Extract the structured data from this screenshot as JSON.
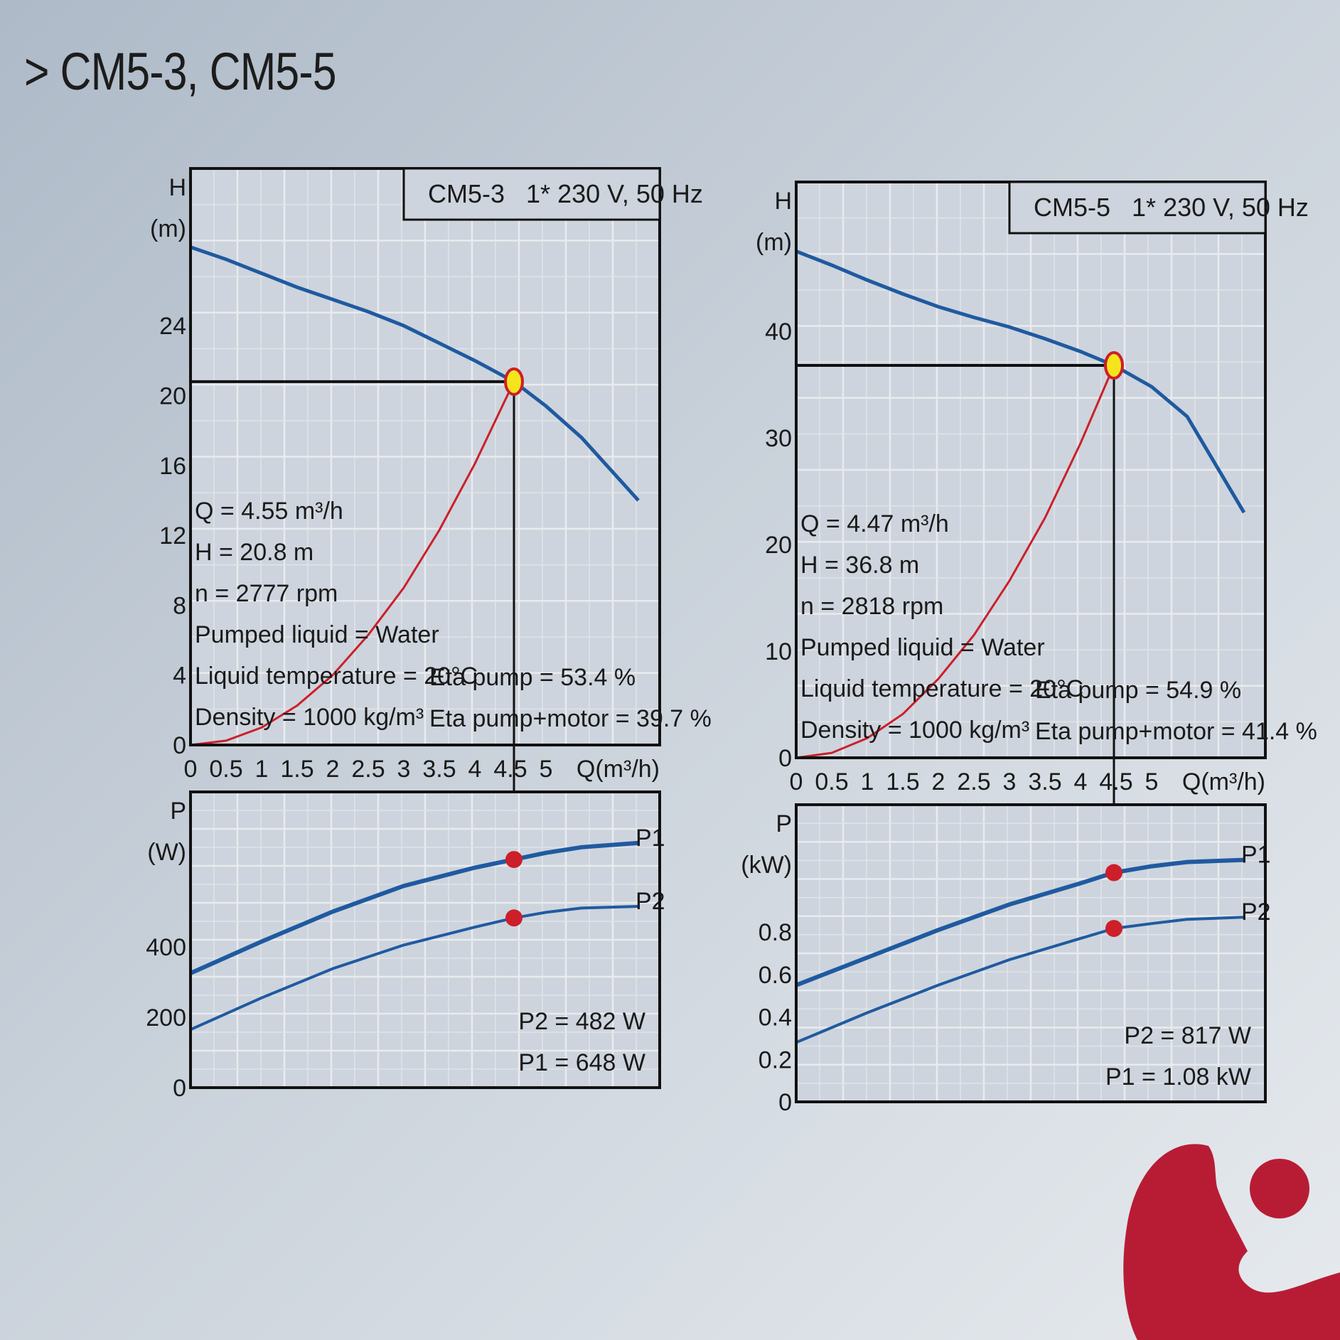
{
  "page": {
    "title": "> CM5-3, CM5-5"
  },
  "chart_data": [
    {
      "type": "line",
      "title": "CM5-3",
      "subtitle": "1* 230 V, 50 Hz",
      "xlabel": "Q(m³/h)",
      "xlim": [
        0,
        6.6
      ],
      "xticks": [
        0,
        0.5,
        1,
        1.5,
        2,
        2.5,
        3,
        3.5,
        4,
        4.5,
        5
      ],
      "head": {
        "ylabel": [
          "H",
          "(m)"
        ],
        "ylim": [
          0,
          33
        ],
        "yticks": [
          0,
          4,
          8,
          12,
          16,
          20,
          24
        ],
        "series": [
          {
            "name": "",
            "role": "pump-curve",
            "x": [
              0,
              0.5,
              1,
              1.5,
              2,
              2.5,
              3,
              3.5,
              4,
              4.55,
              5,
              5.5,
              6.3
            ],
            "y": [
              28.5,
              27.8,
              27.0,
              26.2,
              25.5,
              24.8,
              24.0,
              23.0,
              22.0,
              20.8,
              19.4,
              17.6,
              14.0
            ]
          },
          {
            "name": "",
            "role": "system-curve",
            "x": [
              0,
              0.5,
              1,
              1.5,
              2,
              2.5,
              3,
              3.5,
              4,
              4.55
            ],
            "y": [
              0,
              0.25,
              1.0,
              2.26,
              4.0,
              6.3,
              9.0,
              12.3,
              16.1,
              20.8
            ]
          }
        ],
        "operating_point": {
          "x": 4.55,
          "y": 20.8
        },
        "grid": true
      },
      "info_lines": [
        "Q = 4.55 m³/h",
        "H = 20.8 m",
        "n = 2777 rpm",
        "Pumped liquid = Water",
        "Liquid temperature = 20°C",
        "Density = 1000 kg/m³"
      ],
      "eta_lines": [
        "Eta pump = 53.4 %",
        "Eta pump+motor = 39.7 %"
      ],
      "power": {
        "ylabel": [
          "P",
          "(W)"
        ],
        "ylim": [
          0,
          840
        ],
        "yticks": [
          0,
          200,
          400
        ],
        "series": [
          {
            "name": "P1",
            "x": [
              0,
              1,
              2,
              3,
              4,
              4.55,
              5,
              5.5,
              6.3
            ],
            "y": [
              325,
              415,
              500,
              573,
              625,
              648,
              667,
              683,
              695
            ]
          },
          {
            "name": "P2",
            "x": [
              0,
              1,
              2,
              3,
              4,
              4.55,
              5,
              5.5,
              6.3
            ],
            "y": [
              165,
              255,
              338,
              405,
              456,
              482,
              498,
              510,
              515
            ]
          }
        ],
        "markers": [
          {
            "x": 4.55,
            "y": 648
          },
          {
            "x": 4.55,
            "y": 482
          }
        ],
        "result_lines": [
          "P2 = 482 W",
          "P1 = 648 W"
        ],
        "grid": true
      }
    },
    {
      "type": "line",
      "title": "CM5-5",
      "subtitle": "1* 230 V, 50 Hz",
      "xlabel": "Q(m³/h)",
      "xlim": [
        0,
        6.6
      ],
      "xticks": [
        0,
        0.5,
        1,
        1.5,
        2,
        2.5,
        3,
        3.5,
        4,
        4.5,
        5
      ],
      "head": {
        "ylabel": [
          "H",
          "(m)"
        ],
        "ylim": [
          0,
          54
        ],
        "yticks": [
          0,
          10,
          20,
          30,
          40
        ],
        "series": [
          {
            "name": "",
            "role": "pump-curve",
            "x": [
              0,
              0.5,
              1,
              1.5,
              2,
              2.5,
              3,
              3.5,
              4,
              4.47,
              5,
              5.5,
              6.3
            ],
            "y": [
              47.5,
              46.2,
              44.8,
              43.5,
              42.3,
              41.3,
              40.4,
              39.3,
              38.1,
              36.8,
              34.8,
              32.0,
              23.0
            ]
          },
          {
            "name": "",
            "role": "system-curve",
            "x": [
              0,
              0.5,
              1,
              1.5,
              2,
              2.5,
              3,
              3.5,
              4,
              4.47
            ],
            "y": [
              0,
              0.46,
              1.84,
              4.1,
              7.4,
              11.5,
              16.6,
              22.5,
              29.5,
              36.8
            ]
          }
        ],
        "operating_point": {
          "x": 4.47,
          "y": 36.8
        },
        "grid": true
      },
      "info_lines": [
        "Q = 4.47 m³/h",
        "H = 36.8 m",
        "n = 2818 rpm",
        "Pumped liquid = Water",
        "Liquid temperature = 20°C",
        "Density = 1000 kg/m³"
      ],
      "eta_lines": [
        "Eta pump = 54.9 %",
        "Eta pump+motor = 41.4 %"
      ],
      "power": {
        "ylabel": [
          "P",
          "(kW)"
        ],
        "ylim": [
          0,
          1.4
        ],
        "yticks": [
          0,
          0.2,
          0.4,
          0.6,
          0.8
        ],
        "ytick_labels": [
          "0",
          "0.2",
          "0.4",
          "0.6",
          "0.8"
        ],
        "series": [
          {
            "name": "P1",
            "x": [
              0,
              1,
              2,
              3,
              4,
              4.47,
              5,
              5.5,
              6.3
            ],
            "y": [
              0.55,
              0.68,
              0.81,
              0.93,
              1.03,
              1.08,
              1.11,
              1.13,
              1.14
            ]
          },
          {
            "name": "P2",
            "x": [
              0,
              1,
              2,
              3,
              4,
              4.47,
              5,
              5.5,
              6.3
            ],
            "y": [
              0.28,
              0.42,
              0.55,
              0.67,
              0.77,
              0.817,
              0.84,
              0.86,
              0.87
            ]
          }
        ],
        "markers": [
          {
            "x": 4.47,
            "y": 1.08
          },
          {
            "x": 4.47,
            "y": 0.817
          }
        ],
        "result_lines": [
          "P2 = 817 W",
          "P1 = 1.08 kW"
        ],
        "grid": true
      }
    }
  ],
  "colors": {
    "pump_curve": "#1f5aa0",
    "system_curve": "#cc1f2a",
    "operating_point_fill": "#f6e41c",
    "marker": "#cc1f2a",
    "logo": "#b81c35"
  },
  "logo": {
    "icon": "brand-logo-mark"
  }
}
